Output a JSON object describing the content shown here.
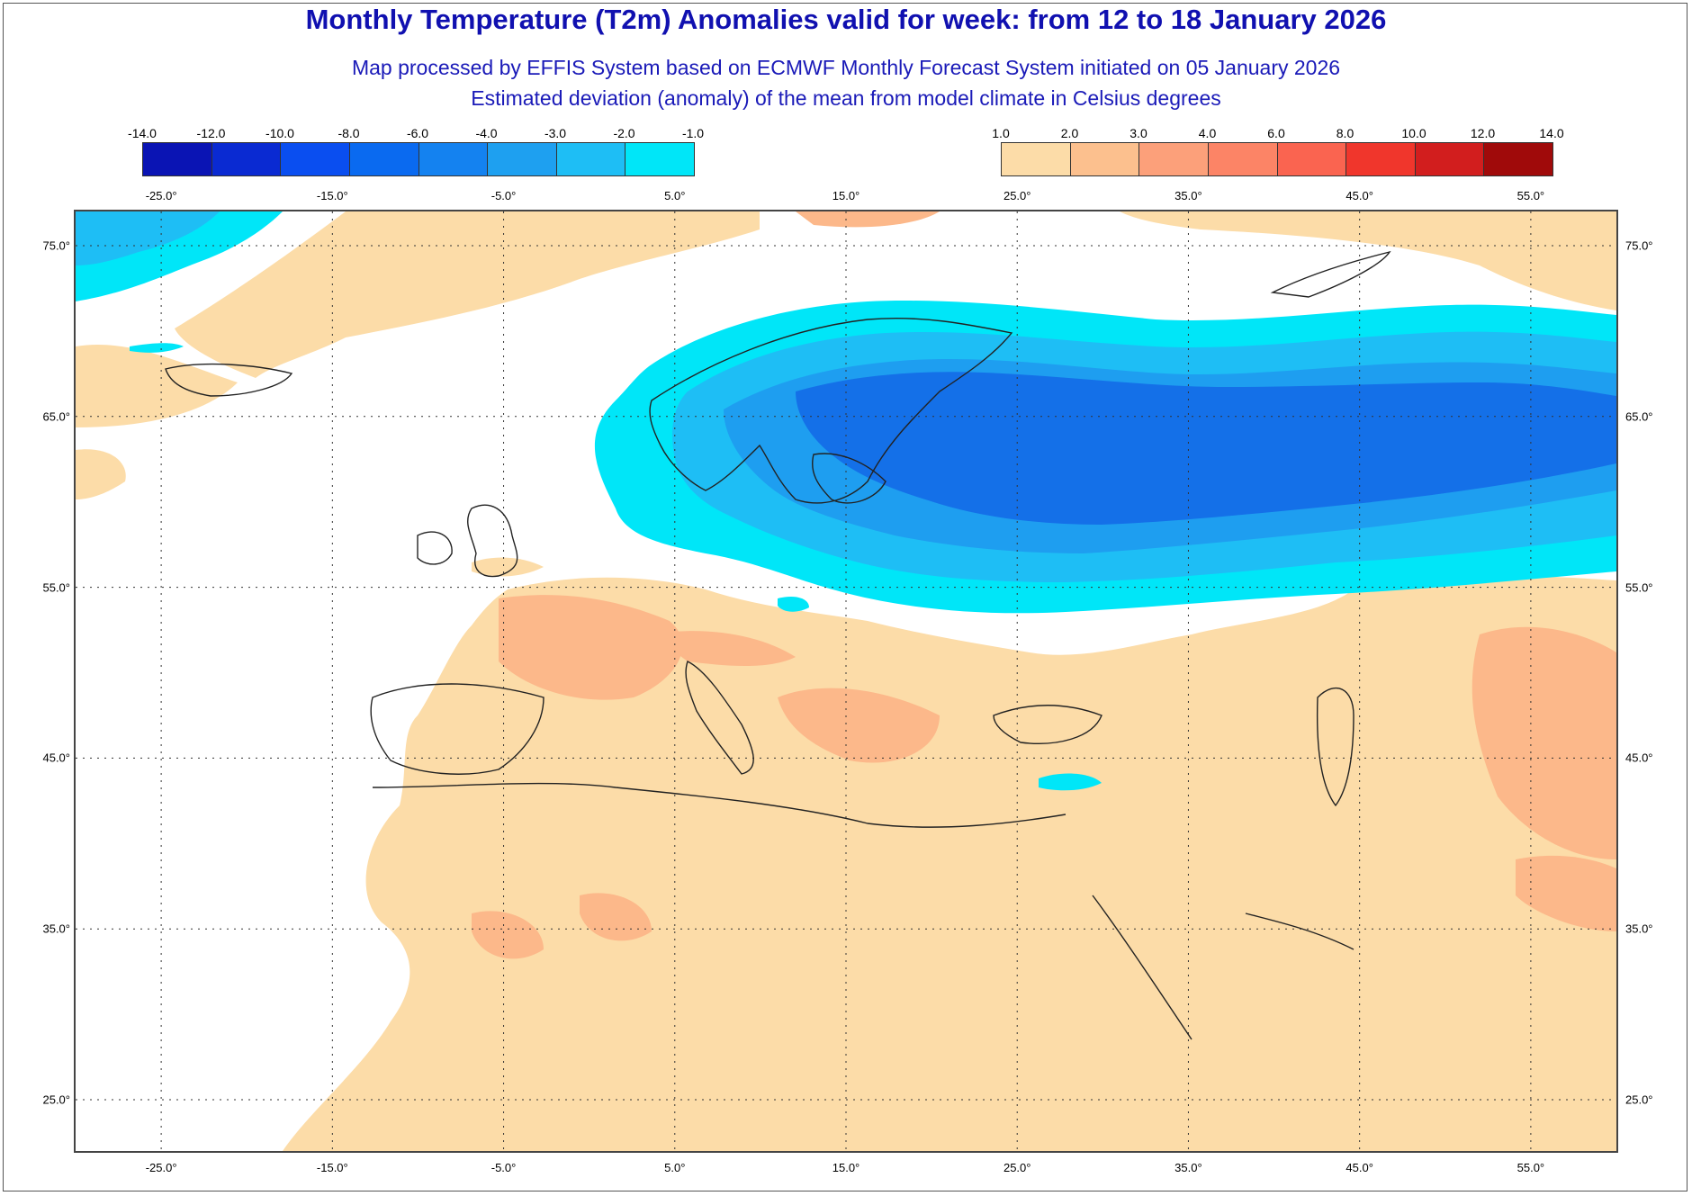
{
  "title": "Monthly Temperature (T2m) Anomalies valid for week: from 12 to 18 January 2026",
  "subtitle_1": "Map processed by EFFIS System based on ECMWF Monthly Forecast System initiated on 05 January 2026",
  "subtitle_2": "Estimated deviation (anomaly) of the mean from model climate in Celsius degrees",
  "legend_cold": {
    "ticks": [
      "-14.0",
      "-12.0",
      "-10.0",
      "-8.0",
      "-6.0",
      "-4.0",
      "-3.0",
      "-2.0",
      "-1.0"
    ],
    "colors": [
      "#0a14b4",
      "#0a2ad2",
      "#0a4ef0",
      "#0a6af0",
      "#1482f0",
      "#1ea0f0",
      "#1ebef5",
      "#00e6f8"
    ]
  },
  "legend_warm": {
    "ticks": [
      "1.0",
      "2.0",
      "3.0",
      "4.0",
      "6.0",
      "8.0",
      "10.0",
      "12.0",
      "14.0"
    ],
    "colors": [
      "#fcdca8",
      "#fcc08e",
      "#fca07a",
      "#fc8466",
      "#fa6450",
      "#f0362c",
      "#d21e1e",
      "#a00a0a"
    ]
  },
  "map": {
    "lon_labels": [
      "-25.0°",
      "-15.0°",
      "-5.0°",
      "5.0°",
      "15.0°",
      "25.0°",
      "35.0°",
      "45.0°",
      "55.0°"
    ],
    "lon_values": [
      -25,
      -15,
      -5,
      5,
      15,
      25,
      35,
      45,
      55
    ],
    "lat_labels": [
      "75.0°",
      "65.0°",
      "55.0°",
      "45.0°",
      "35.0°",
      "25.0°"
    ],
    "lat_values": [
      75,
      65,
      55,
      45,
      35,
      25
    ],
    "lon_range": [
      -30,
      60
    ],
    "lat_range": [
      22,
      77
    ],
    "gridlines": "dotted"
  },
  "colors": {
    "title": "#1010b0",
    "no_anomaly": "#ffffff",
    "warm_1": "#fcdca8",
    "warm_2": "#fcb88a",
    "cold_1": "#00e6f8",
    "cold_2": "#1ebef5",
    "cold_3": "#1e9ef0",
    "cold_4": "#1470e8",
    "coastline": "#222222"
  }
}
